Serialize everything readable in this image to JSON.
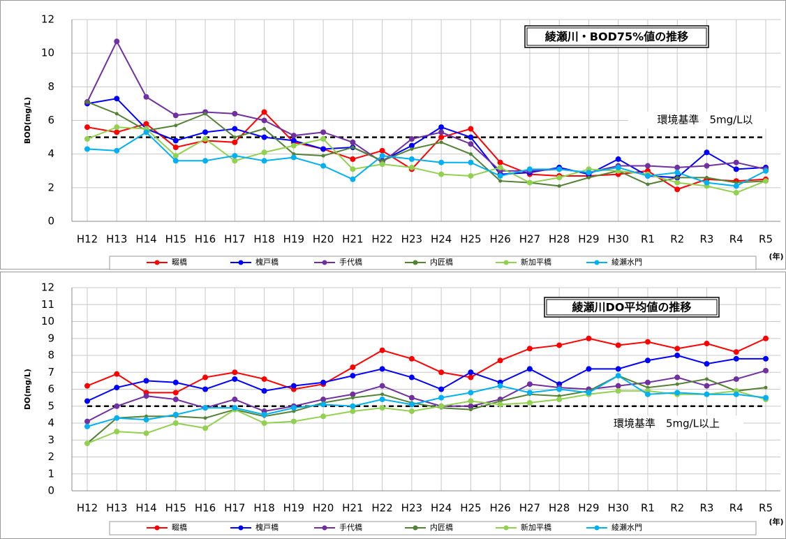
{
  "chart_data": [
    {
      "type": "line",
      "title": "綾瀬川・BOD75%値の推移",
      "y_label": "BOD(mg/L)",
      "x_unit": "(年)",
      "categories": [
        "H12",
        "H13",
        "H14",
        "H15",
        "H16",
        "H17",
        "H18",
        "H19",
        "H20",
        "H21",
        "H22",
        "H23",
        "H24",
        "H25",
        "H26",
        "H27",
        "H28",
        "H29",
        "H30",
        "R1",
        "R2",
        "R3",
        "R4",
        "R5"
      ],
      "ylim": [
        0,
        12
      ],
      "yticks": [
        0,
        2,
        4,
        6,
        8,
        10,
        12
      ],
      "grid": true,
      "legend": "bottom",
      "reference": {
        "value": 5,
        "label": "環境基準　5mg/L以"
      },
      "series": [
        {
          "name": "畷橋",
          "color": "#ff0000",
          "values": [
            5.6,
            5.3,
            5.8,
            4.4,
            4.8,
            4.7,
            6.5,
            4.7,
            4.3,
            3.7,
            4.2,
            3.1,
            5.0,
            5.5,
            3.5,
            2.8,
            2.7,
            2.7,
            2.8,
            3.0,
            1.9,
            2.5,
            2.4,
            2.5
          ]
        },
        {
          "name": "槐戸橋",
          "color": "#0000ff",
          "values": [
            7.0,
            7.3,
            5.5,
            4.8,
            5.3,
            5.5,
            5.0,
            4.8,
            4.3,
            4.4,
            3.6,
            4.5,
            5.6,
            5.0,
            2.8,
            2.9,
            3.2,
            2.8,
            3.7,
            2.7,
            2.6,
            4.1,
            3.1,
            3.2
          ]
        },
        {
          "name": "手代橋",
          "color": "#7030a0",
          "values": [
            7.1,
            10.7,
            7.4,
            6.3,
            6.5,
            6.4,
            6.0,
            5.1,
            5.3,
            4.7,
            3.5,
            4.9,
            5.3,
            4.6,
            3.0,
            3.0,
            3.1,
            2.9,
            3.3,
            3.3,
            3.2,
            3.3,
            3.5,
            3.1
          ]
        },
        {
          "name": "内匠橋",
          "color": "#548235",
          "values": [
            7.1,
            6.4,
            5.4,
            5.7,
            6.4,
            5.0,
            5.5,
            4.0,
            3.9,
            4.4,
            3.6,
            4.3,
            4.7,
            4.0,
            2.4,
            2.3,
            2.1,
            2.6,
            3.0,
            2.2,
            2.6,
            2.6,
            2.3,
            2.4
          ]
        },
        {
          "name": "新加平橋",
          "color": "#92d050",
          "values": [
            4.9,
            5.6,
            5.5,
            3.9,
            4.9,
            3.6,
            4.1,
            4.5,
            4.9,
            3.1,
            3.4,
            3.2,
            2.8,
            2.7,
            3.2,
            2.3,
            2.6,
            3.1,
            3.0,
            2.8,
            2.3,
            2.1,
            1.7,
            2.4
          ]
        },
        {
          "name": "綾瀬水門",
          "color": "#00b0f0",
          "values": [
            4.3,
            4.2,
            5.3,
            3.6,
            3.6,
            3.9,
            3.6,
            3.8,
            3.3,
            2.5,
            3.9,
            3.7,
            3.5,
            3.5,
            2.7,
            3.1,
            3.1,
            2.9,
            3.2,
            2.7,
            2.9,
            2.3,
            2.1,
            3.0
          ]
        }
      ]
    },
    {
      "type": "line",
      "title": "綾瀬川DO平均値の推移",
      "y_label": "DO(mg/L)",
      "x_unit": "(年)",
      "categories": [
        "H12",
        "H13",
        "H14",
        "H15",
        "H16",
        "H17",
        "H18",
        "H19",
        "H20",
        "H21",
        "H22",
        "H23",
        "H24",
        "H25",
        "H26",
        "H27",
        "H28",
        "H29",
        "H30",
        "R1",
        "R2",
        "R3",
        "R4",
        "R5"
      ],
      "ylim": [
        0,
        12
      ],
      "yticks": [
        0,
        1,
        2,
        3,
        4,
        5,
        6,
        7,
        8,
        9,
        10,
        11,
        12
      ],
      "grid": true,
      "legend": "bottom",
      "reference": {
        "value": 5,
        "label": "環境基準　5mg/L以上"
      },
      "series": [
        {
          "name": "畷橋",
          "color": "#ff0000",
          "values": [
            6.2,
            6.9,
            5.8,
            5.8,
            6.7,
            7.0,
            6.6,
            6.0,
            6.3,
            7.3,
            8.3,
            7.8,
            7.0,
            6.7,
            7.7,
            8.4,
            8.6,
            9.0,
            8.6,
            8.8,
            8.4,
            8.7,
            8.2,
            9.0
          ]
        },
        {
          "name": "槐戸橋",
          "color": "#0000ff",
          "values": [
            5.3,
            6.1,
            6.5,
            6.4,
            6.0,
            6.6,
            5.9,
            6.2,
            6.4,
            6.8,
            7.2,
            6.7,
            6.0,
            7.0,
            6.4,
            7.2,
            6.3,
            7.2,
            7.2,
            7.7,
            8.0,
            7.5,
            7.8,
            7.8
          ]
        },
        {
          "name": "手代橋",
          "color": "#7030a0",
          "values": [
            4.1,
            5.0,
            5.6,
            5.4,
            4.9,
            5.4,
            4.7,
            5.0,
            5.4,
            5.7,
            6.2,
            5.5,
            5.0,
            5.0,
            5.4,
            6.3,
            6.1,
            6.0,
            6.2,
            6.4,
            6.7,
            6.2,
            6.6,
            7.1
          ]
        },
        {
          "name": "内匠橋",
          "color": "#548235",
          "values": [
            2.8,
            4.3,
            4.4,
            4.4,
            4.3,
            4.8,
            4.4,
            4.7,
            5.2,
            5.5,
            5.7,
            5.2,
            4.9,
            4.8,
            5.3,
            5.7,
            5.6,
            5.9,
            6.8,
            6.1,
            6.3,
            6.6,
            5.9,
            6.1
          ]
        },
        {
          "name": "新加平橋",
          "color": "#92d050",
          "values": [
            2.8,
            3.5,
            3.4,
            4.0,
            3.7,
            4.8,
            4.0,
            4.1,
            4.4,
            4.7,
            4.9,
            4.7,
            5.0,
            5.3,
            5.1,
            5.2,
            5.4,
            5.7,
            5.9,
            5.9,
            5.7,
            5.7,
            5.9,
            5.4
          ]
        },
        {
          "name": "綾瀬水門",
          "color": "#00b0f0",
          "values": [
            3.8,
            4.3,
            4.2,
            4.5,
            4.9,
            4.9,
            4.5,
            4.9,
            5.1,
            5.0,
            5.4,
            5.1,
            5.5,
            5.8,
            6.2,
            5.8,
            6.0,
            5.8,
            6.8,
            5.7,
            5.8,
            5.7,
            5.7,
            5.5
          ]
        }
      ]
    }
  ]
}
